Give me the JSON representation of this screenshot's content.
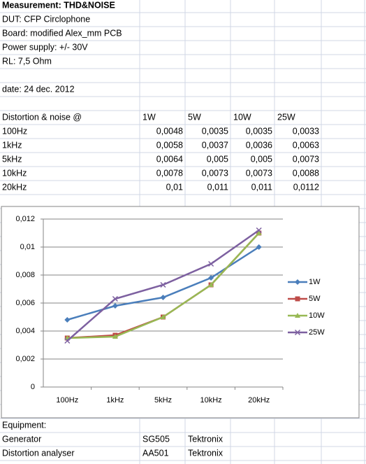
{
  "header": {
    "title": "Measurement: THD&NOISE",
    "lines": [
      "DUT: CFP Circlophone",
      "Board: modified Alex_mm PCB",
      "Power supply: +/- 30V",
      "RL: 7,5 Ohm"
    ],
    "date": "date: 24 dec. 2012"
  },
  "table": {
    "columns": [
      "Distortion & noise @",
      "1W",
      "5W",
      "10W",
      "25W"
    ],
    "rows": [
      [
        "100Hz",
        "0,0048",
        "0,0035",
        "0,0035",
        "0,0033"
      ],
      [
        "1kHz",
        "0,0058",
        "0,0037",
        "0,0036",
        "0,0063"
      ],
      [
        "5kHz",
        "0,0064",
        "0,005",
        "0,005",
        "0,0073"
      ],
      [
        "10kHz",
        "0,0078",
        "0,0073",
        "0,0073",
        "0,0088"
      ],
      [
        "20kHz",
        "0,01",
        "0,011",
        "0,011",
        "0,0112"
      ]
    ]
  },
  "equipment": {
    "title": "Equipment:",
    "rows": [
      [
        "Generator",
        "SG505",
        "Tektronix"
      ],
      [
        "Distortion analyser",
        "AA501",
        "Tektronix"
      ]
    ]
  },
  "chart_data": {
    "type": "line",
    "categories": [
      "100Hz",
      "1kHz",
      "5kHz",
      "10kHz",
      "20kHz"
    ],
    "series": [
      {
        "name": "1W",
        "color": "#4a7ebb",
        "marker": "diamond",
        "values": [
          0.0048,
          0.0058,
          0.0064,
          0.0078,
          0.01
        ]
      },
      {
        "name": "5W",
        "color": "#be4b48",
        "marker": "square",
        "values": [
          0.0035,
          0.0037,
          0.005,
          0.0073,
          0.011
        ]
      },
      {
        "name": "10W",
        "color": "#98b954",
        "marker": "triangle",
        "values": [
          0.0035,
          0.0036,
          0.005,
          0.0073,
          0.011
        ]
      },
      {
        "name": "25W",
        "color": "#7d60a0",
        "marker": "x",
        "values": [
          0.0033,
          0.0063,
          0.0073,
          0.0088,
          0.0112
        ]
      }
    ],
    "ylim": [
      0,
      0.012
    ],
    "yticks": [
      0,
      {
        "value": 0.002,
        "label": "0,002"
      },
      {
        "value": 0.004,
        "label": "0,004"
      },
      {
        "value": 0.006,
        "label": "0,006"
      },
      {
        "value": 0.008,
        "label": "0,008"
      },
      {
        "value": 0.01,
        "label": "0,01"
      },
      {
        "value": 0.012,
        "label": "0,012"
      }
    ],
    "grid": true,
    "legend": "right"
  }
}
